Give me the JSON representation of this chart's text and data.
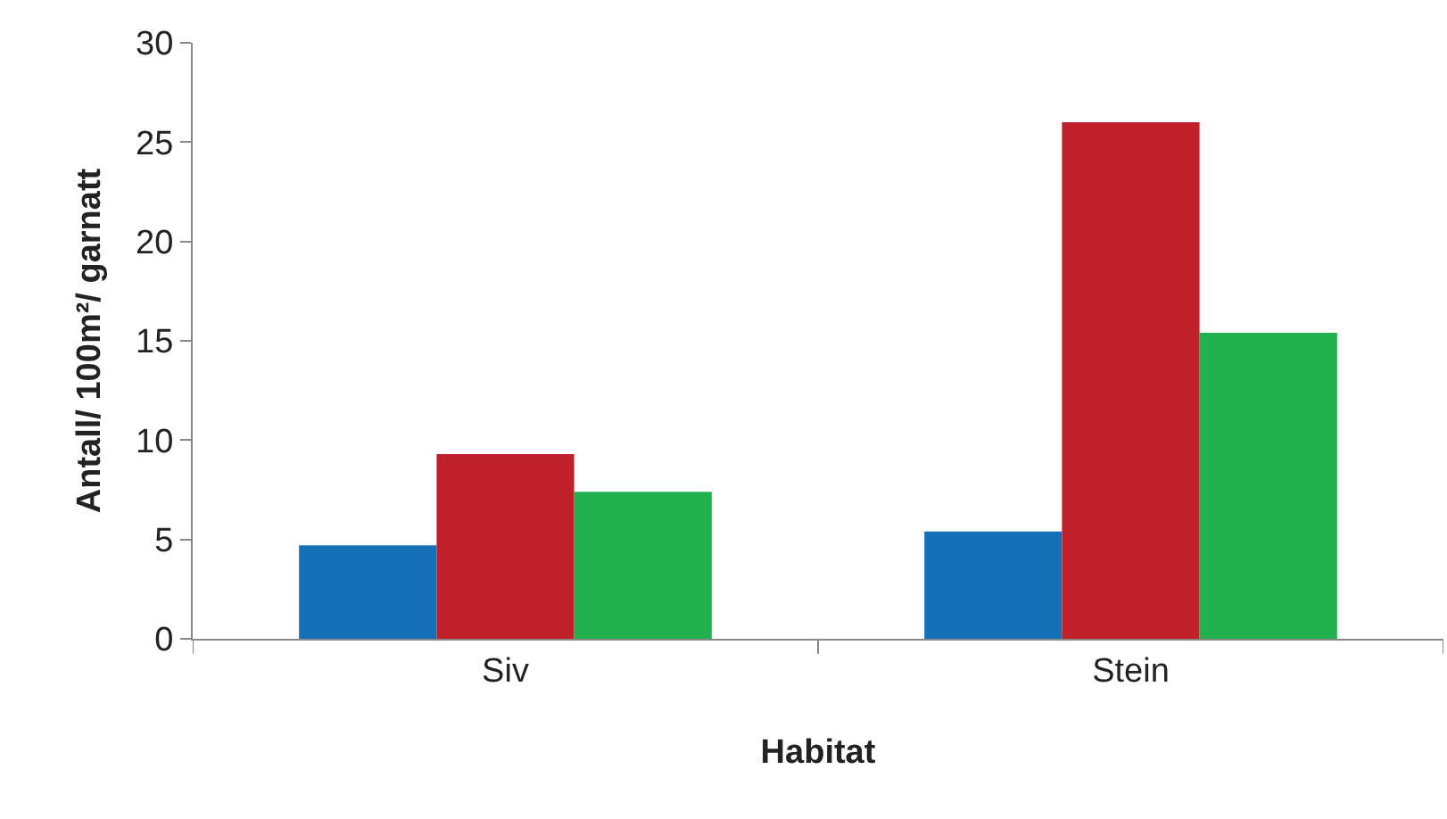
{
  "chart_data": {
    "type": "bar",
    "xlabel": "Habitat",
    "ylabel": "Antall/ 100m²/ garnatt",
    "categories": [
      "Siv",
      "Stein"
    ],
    "series": [
      {
        "color": "#1570b8",
        "values": [
          4.7,
          5.4
        ]
      },
      {
        "color": "#c0202a",
        "values": [
          9.3,
          26.0
        ]
      },
      {
        "color": "#23b04f",
        "values": [
          7.4,
          15.4
        ]
      }
    ],
    "ylim": [
      0,
      30
    ],
    "yticks": [
      0,
      5,
      10,
      15,
      20,
      25,
      30
    ],
    "grid": false
  }
}
